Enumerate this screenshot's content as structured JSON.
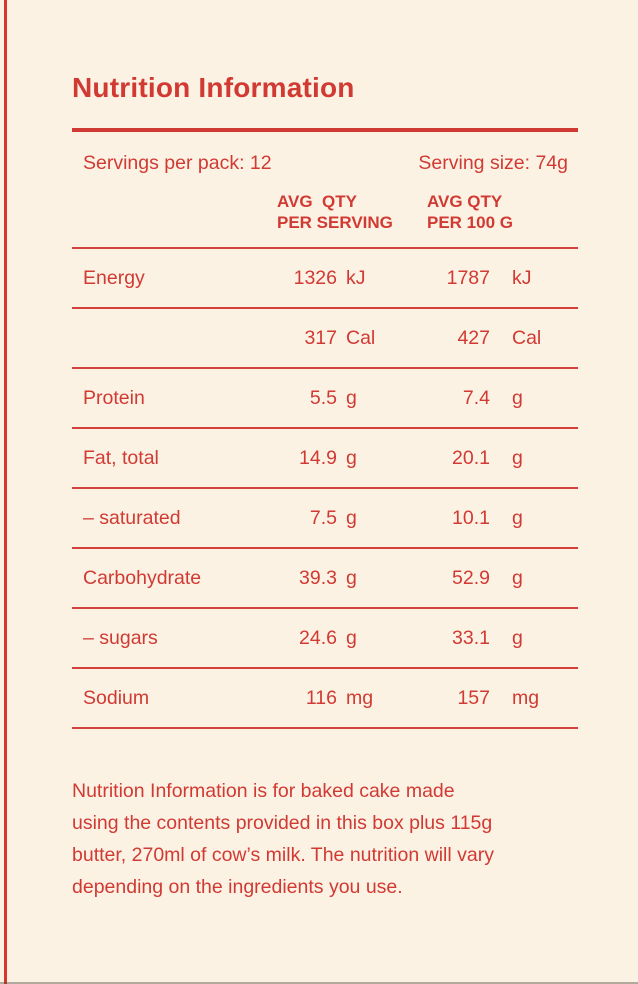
{
  "colors": {
    "accent": "#d13a33",
    "background": "#fcf2e4",
    "edge_line": "#d8362d"
  },
  "title": "Nutrition Information",
  "serving_info": {
    "servings_per_pack": "Servings per pack: 12",
    "serving_size": "Serving size: 74g"
  },
  "table": {
    "col1_header_line1": "AVG  QTY",
    "col1_header_line2": "PER SERVING",
    "col2_header_line1": "AVG QTY",
    "col2_header_line2": "PER 100 G",
    "rows": [
      {
        "label": "Energy",
        "per_serving": "1326",
        "unit_per_serving": "kJ",
        "per_100g": "1787",
        "unit_per_100g": "kJ"
      },
      {
        "label": "",
        "per_serving": "317",
        "unit_per_serving": "Cal",
        "per_100g": "427",
        "unit_per_100g": "Cal"
      },
      {
        "label": "Protein",
        "per_serving": "5.5",
        "unit_per_serving": "g",
        "per_100g": "7.4",
        "unit_per_100g": "g"
      },
      {
        "label": "Fat, total",
        "per_serving": "14.9",
        "unit_per_serving": "g",
        "per_100g": "20.1",
        "unit_per_100g": "g"
      },
      {
        "label": "– saturated",
        "per_serving": "7.5",
        "unit_per_serving": "g",
        "per_100g": "10.1",
        "unit_per_100g": "g"
      },
      {
        "label": "Carbohydrate",
        "per_serving": "39.3",
        "unit_per_serving": "g",
        "per_100g": "52.9",
        "unit_per_100g": "g"
      },
      {
        "label": "– sugars",
        "per_serving": "24.6",
        "unit_per_serving": "g",
        "per_100g": "33.1",
        "unit_per_100g": "g"
      },
      {
        "label": "Sodium",
        "per_serving": "116",
        "unit_per_serving": "mg",
        "per_100g": "157",
        "unit_per_100g": "mg"
      }
    ]
  },
  "footnote": {
    "full_text": "Nutrition Information is for baked cake made using the contents provided in this box plus 115g butter, 270ml of cow’s milk. The nutrition will vary depending on the ingredients you use.",
    "lines": [
      "Nutrition Information is for baked cake made",
      "using the contents provided in this box plus 115g",
      "butter, 270ml of cow’s milk. The nutrition will vary",
      "depending on the ingredients you use."
    ]
  }
}
